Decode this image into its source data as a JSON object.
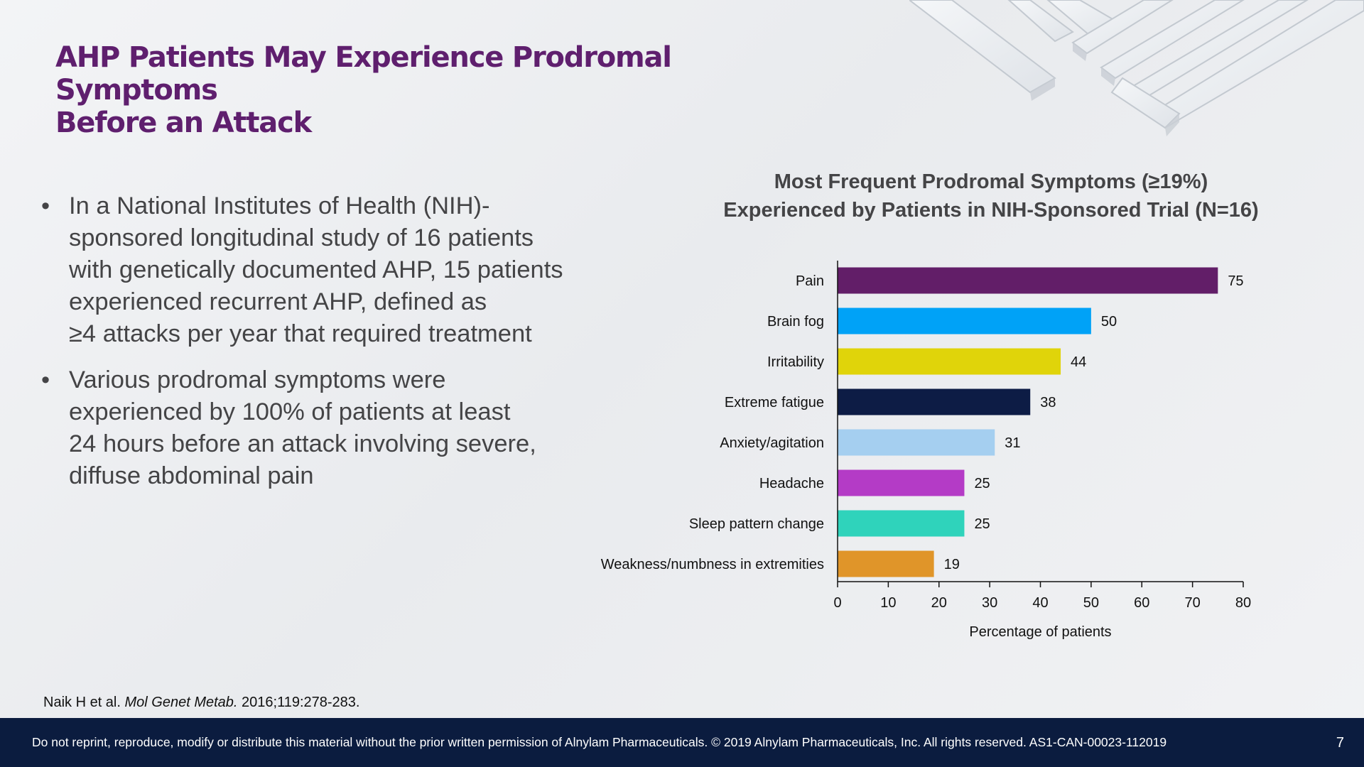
{
  "slide": {
    "title_lines": [
      "AHP Patients May Experience Prodromal Symptoms",
      "Before an Attack"
    ]
  },
  "bullets": [
    {
      "lines": [
        "In a National Institutes of Health (NIH)-",
        "sponsored longitudinal study of 16 patients",
        "with genetically documented AHP, 15 patients",
        "experienced recurrent AHP, defined as",
        "≥4 attacks per year that required treatment"
      ]
    },
    {
      "lines": [
        "Various prodromal symptoms were",
        "experienced by 100% of patients at least",
        "24 hours before an attack involving severe,",
        "diffuse abdominal pain"
      ]
    }
  ],
  "chart_data": {
    "type": "bar",
    "orientation": "horizontal",
    "title_lines": [
      "Most Frequent Prodromal Symptoms (≥19%)",
      "Experienced by Patients in NIH-Sponsored Trial (N=16)"
    ],
    "categories": [
      "Pain",
      "Brain fog",
      "Irritability",
      "Extreme fatigue",
      "Anxiety/agitation",
      "Headache",
      "Sleep pattern change",
      "Weakness/numbness in extremities"
    ],
    "values": [
      75,
      50,
      44,
      38,
      31,
      25,
      25,
      19
    ],
    "colors": [
      "#621e68",
      "#00a2f7",
      "#e0d40a",
      "#0d1c45",
      "#a5cff0",
      "#b43bc6",
      "#2fd3bb",
      "#e09529"
    ],
    "xlabel": "Percentage of patients",
    "ylabel": "",
    "xlim": [
      0,
      80
    ],
    "xticks": [
      0,
      10,
      20,
      30,
      40,
      50,
      60,
      70,
      80
    ],
    "grid": false,
    "legend": "none",
    "data_labels": true
  },
  "citation": {
    "authors": "Naik H et al.",
    "journal": "Mol Genet Metab.",
    "details": "2016;119:278-283."
  },
  "footer": {
    "text": "Do not reprint, reproduce, modify or distribute this material without the prior written permission of Alnylam Pharmaceuticals. © 2019 Alnylam Pharmaceuticals, Inc. All rights reserved. AS1-CAN-00023-112019",
    "page_number": "7"
  }
}
